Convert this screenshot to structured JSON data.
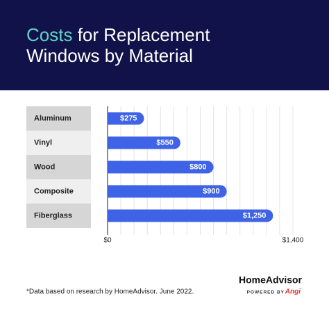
{
  "chart_data": {
    "type": "bar",
    "orientation": "horizontal",
    "title": "Costs for Replacement Windows by Material",
    "title_accent_color": "#5fd3c4",
    "categories": [
      "Aluminum",
      "Vinyl",
      "Wood",
      "Composite",
      "Fiberglass"
    ],
    "values": [
      275,
      550,
      800,
      900,
      1250
    ],
    "value_labels": [
      "$275",
      "$550",
      "$800",
      "$900",
      "$1,250"
    ],
    "color": "#3f63e6",
    "xlim": [
      0,
      1400
    ],
    "xticks": [
      {
        "value": 0,
        "label": "$0"
      },
      {
        "value": 1400,
        "label": "$1,400"
      }
    ],
    "xgrid": [
      0,
      100,
      200,
      300,
      400,
      500,
      600,
      700,
      800,
      900,
      1000,
      1100,
      1200,
      1300,
      1400
    ],
    "grid": true,
    "footnote": "*Data based on research by HomeAdvisor. June 2022.",
    "logo": "HomeAdvisor",
    "logo_tagline": "POWERED BY",
    "logo_brand": "Angi"
  }
}
